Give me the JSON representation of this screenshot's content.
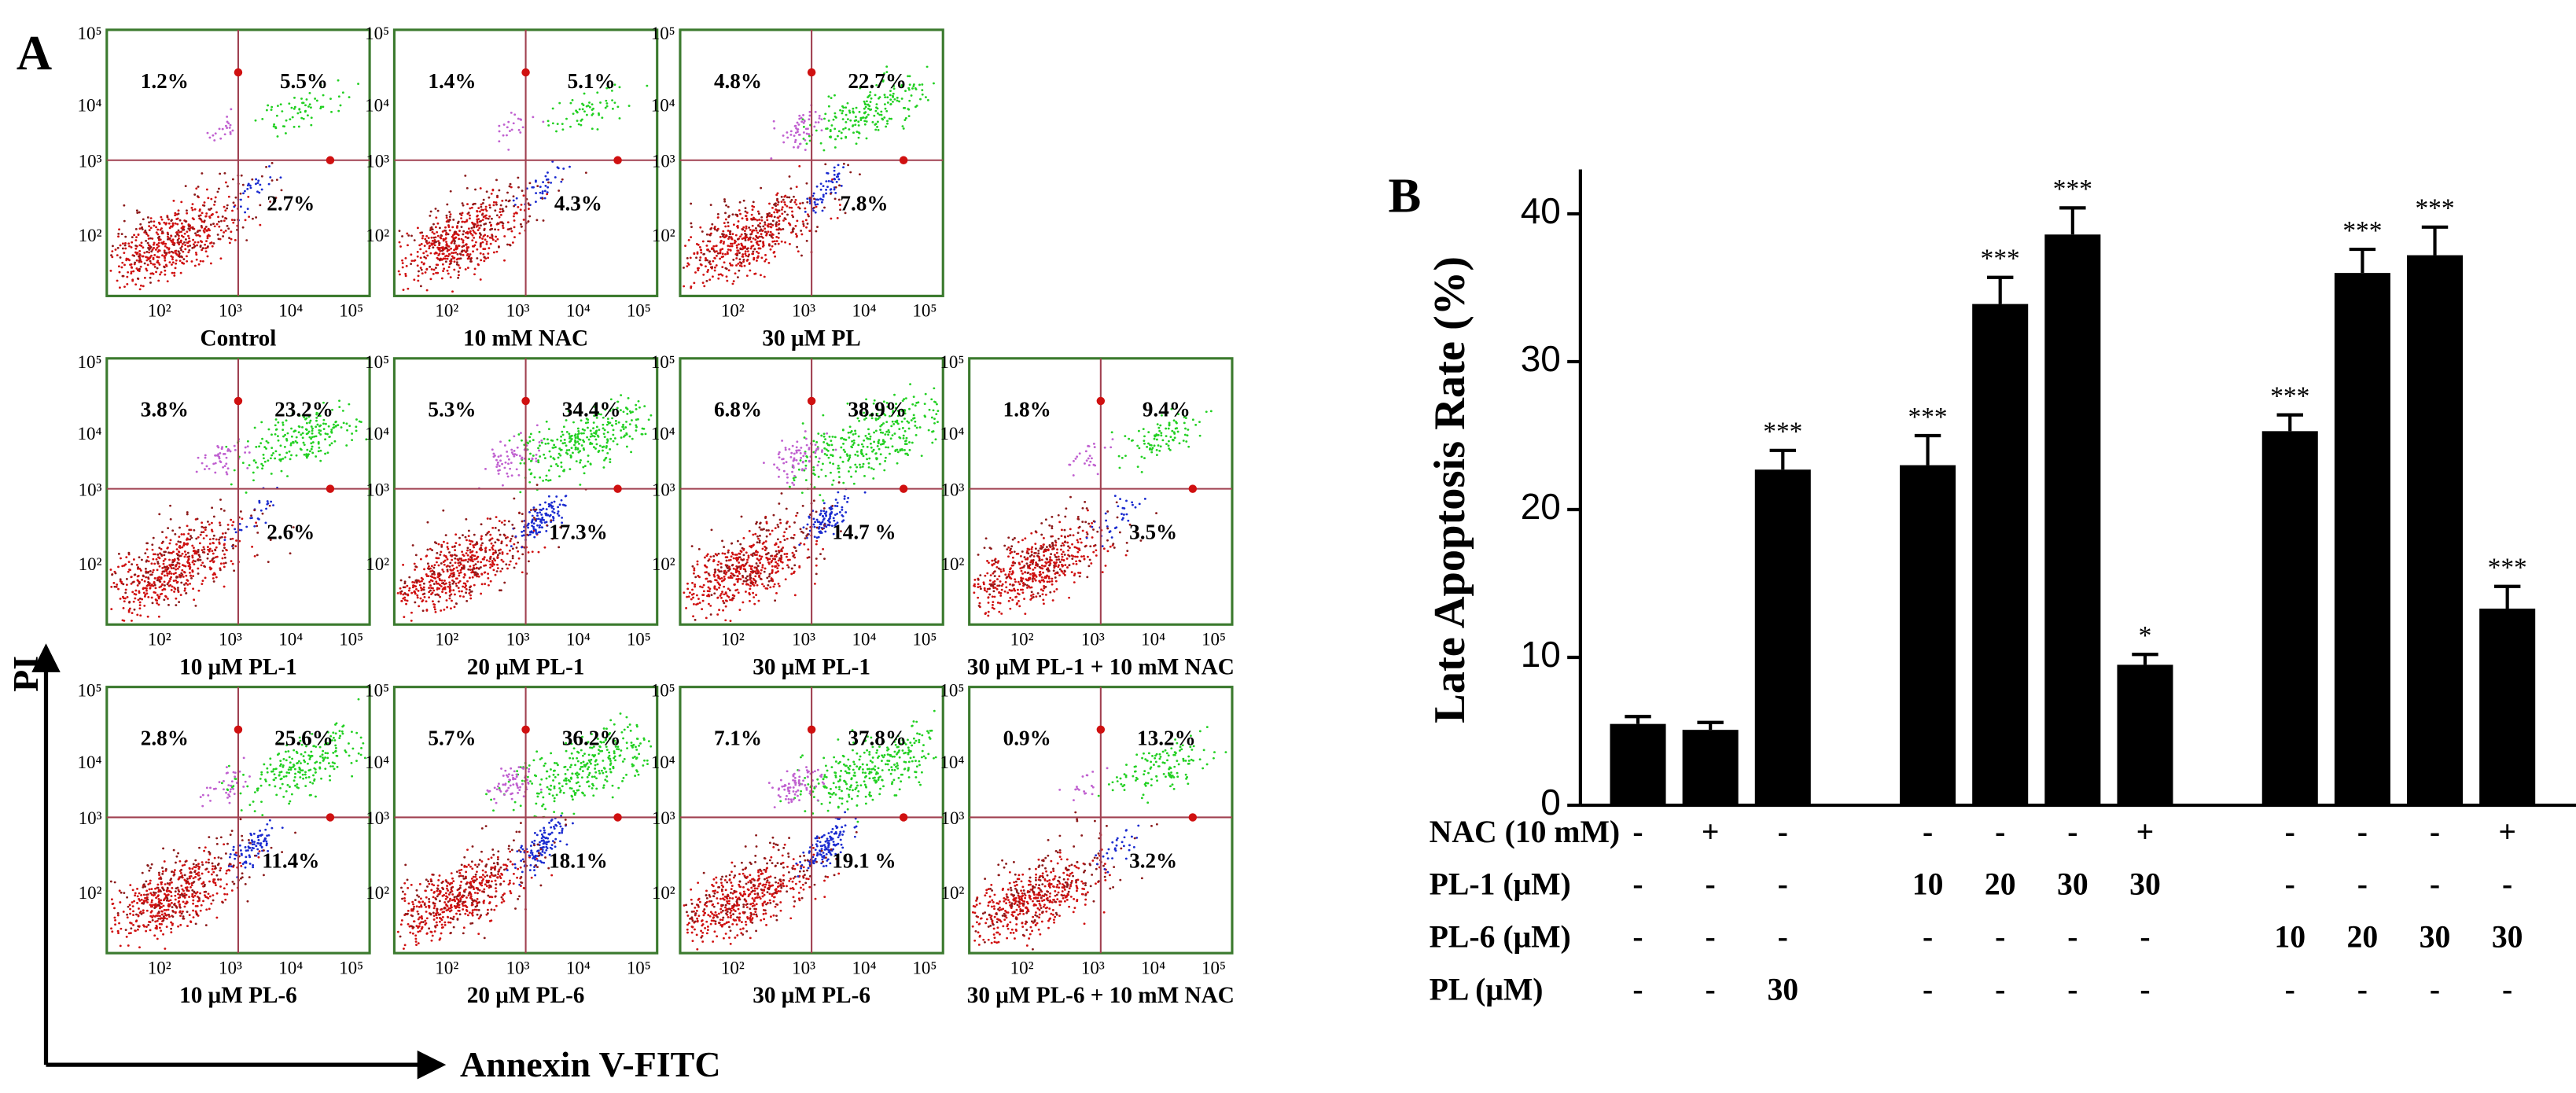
{
  "panel_a": {
    "label": "A",
    "y_axis_label": "PI",
    "x_axis_label": "Annexin V-FITC",
    "ticks": [
      "10²",
      "10³",
      "10⁴",
      "10⁵"
    ],
    "plots": [
      {
        "label": "Control",
        "upper_left": "1.2%",
        "upper_right": "5.5%",
        "lower_right": "2.7%"
      },
      {
        "label": "10 mM NAC",
        "upper_left": "1.4%",
        "upper_right": "5.1%",
        "lower_right": "4.3%"
      },
      {
        "label": "30 μM PL",
        "upper_left": "4.8%",
        "upper_right": "22.7%",
        "lower_right": "7.8%"
      },
      {
        "label": "10 μM PL-1",
        "upper_left": "3.8%",
        "upper_right": "23.2%",
        "lower_right": "2.6%"
      },
      {
        "label": "20 μM PL-1",
        "upper_left": "5.3%",
        "upper_right": "34.4%",
        "lower_right": "17.3%"
      },
      {
        "label": "30 μM PL-1",
        "upper_left": "6.8%",
        "upper_right": "38.9%",
        "lower_right": "14.7 %"
      },
      {
        "label": "30 μM PL-1 + 10 mM NAC",
        "upper_left": "1.8%",
        "upper_right": "9.4%",
        "lower_right": "3.5%"
      },
      {
        "label": "10 μM PL-6",
        "upper_left": "2.8%",
        "upper_right": "25.6%",
        "lower_right": "11.4%"
      },
      {
        "label": "20 μM PL-6",
        "upper_left": "5.7%",
        "upper_right": "36.2%",
        "lower_right": "18.1%"
      },
      {
        "label": "30 μM PL-6",
        "upper_left": "7.1%",
        "upper_right": "37.8%",
        "lower_right": "19.1 %"
      },
      {
        "label": "30 μM PL-6 + 10 mM NAC",
        "upper_left": "0.9%",
        "upper_right": "13.2%",
        "lower_right": "3.2%"
      }
    ]
  },
  "chart_data": {
    "type": "bar",
    "panel_label": "B",
    "y_label": "Late Apoptosis Rate (%)",
    "color": "#000000",
    "categories": [
      null,
      null,
      null,
      null,
      null,
      null,
      null,
      null,
      null,
      null,
      null,
      null,
      null
    ],
    "values": [
      5.5,
      5.1,
      22.7,
      null,
      23.0,
      33.9,
      38.6,
      9.5,
      null,
      25.3,
      36.0,
      37.2,
      13.3
    ],
    "errors": [
      0.5,
      0.5,
      1.3,
      null,
      2.0,
      1.8,
      1.8,
      0.7,
      null,
      1.1,
      1.6,
      1.9,
      1.5
    ],
    "annotations": [
      null,
      null,
      "***",
      null,
      "***",
      "***",
      "***",
      "*",
      null,
      "***",
      "***",
      "***",
      "***"
    ],
    "ylim": [
      0,
      43
    ],
    "yticks": [
      0,
      10,
      20,
      30,
      40
    ],
    "table": [
      {
        "label": "NAC (10 mM)",
        "cells": [
          "-",
          "+",
          "-",
          null,
          "-",
          "-",
          "-",
          "+",
          null,
          "-",
          "-",
          "-",
          "+"
        ]
      },
      {
        "label": "PL-1 (μM)",
        "cells": [
          "-",
          "-",
          "-",
          null,
          "10",
          "20",
          "30",
          "30",
          null,
          "-",
          "-",
          "-",
          "-"
        ]
      },
      {
        "label": "PL-6 (μM)",
        "cells": [
          "-",
          "-",
          "-",
          null,
          "-",
          "-",
          "-",
          "-",
          null,
          "10",
          "20",
          "30",
          "30"
        ]
      },
      {
        "label": "PL (μM)",
        "cells": [
          "-",
          "-",
          "30",
          null,
          "-",
          "-",
          "-",
          "-",
          null,
          "-",
          "-",
          "-",
          "-"
        ]
      }
    ]
  }
}
